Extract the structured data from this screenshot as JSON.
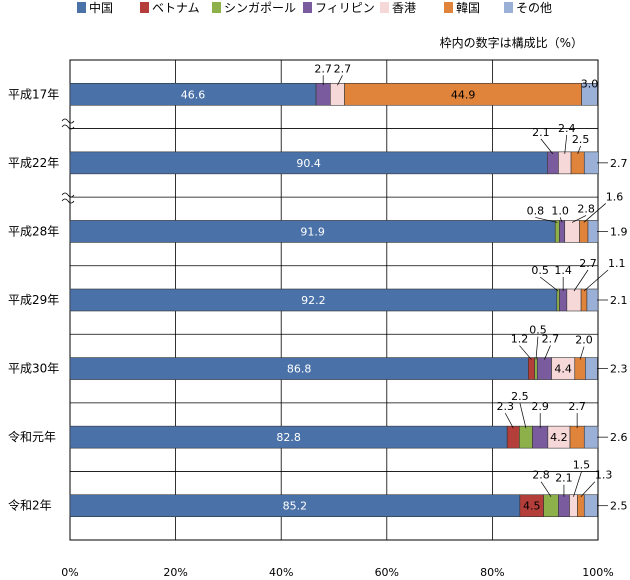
{
  "chart_data": {
    "type": "bar",
    "orientation": "horizontal",
    "stacked": true,
    "note": "枠内の数字は構成比（%）",
    "legend_position": "top",
    "xlim": [
      0,
      100
    ],
    "x_ticks": [
      "0%",
      "20%",
      "40%",
      "60%",
      "80%",
      "100%"
    ],
    "grid": true,
    "categories": [
      "平成17年",
      "平成22年",
      "平成28年",
      "平成29年",
      "平成30年",
      "令和元年",
      "令和2年"
    ],
    "series": [
      {
        "name": "中国",
        "color": "#4a72a8",
        "values": [
          46.6,
          90.4,
          91.9,
          92.2,
          86.8,
          82.8,
          85.2
        ]
      },
      {
        "name": "ベトナム",
        "color": "#b43f3a",
        "values": [
          0,
          0,
          0,
          0,
          1.2,
          2.3,
          4.5
        ]
      },
      {
        "name": "シンガポール",
        "color": "#8eb04a",
        "values": [
          0,
          0,
          0.8,
          0.5,
          0.5,
          2.5,
          2.8
        ]
      },
      {
        "name": "フィリピン",
        "color": "#7a5c9e",
        "values": [
          2.7,
          2.1,
          1.0,
          1.4,
          2.7,
          2.9,
          2.1
        ]
      },
      {
        "name": "香港",
        "color": "#f6d8d8",
        "values": [
          2.7,
          2.4,
          2.8,
          2.7,
          4.4,
          4.2,
          1.5
        ]
      },
      {
        "name": "韓国",
        "color": "#e0843c",
        "values": [
          44.9,
          2.5,
          1.6,
          1.1,
          2.0,
          2.7,
          1.3
        ]
      },
      {
        "name": "その他",
        "color": "#9bb0d6",
        "values": [
          3.0,
          2.7,
          1.9,
          2.1,
          2.3,
          2.6,
          2.5
        ]
      }
    ],
    "labels": [
      [
        "46.6",
        "",
        "",
        "2.7",
        "2.7",
        "44.9",
        "3.0"
      ],
      [
        "90.4",
        "",
        "",
        "2.1",
        "2.4",
        "2.5",
        "2.7"
      ],
      [
        "91.9",
        "",
        "0.8",
        "1.0",
        "2.8",
        "1.6",
        "1.9"
      ],
      [
        "92.2",
        "",
        "0.5",
        "1.4",
        "2.7",
        "1.1",
        "2.1"
      ],
      [
        "86.8",
        "1.2",
        "0.5",
        "2.7",
        "4.4",
        "2.0",
        "2.3"
      ],
      [
        "82.8",
        "2.3",
        "2.5",
        "2.9",
        "4.2",
        "2.7",
        "2.6"
      ],
      [
        "85.2",
        "4.5",
        "2.8",
        "2.1",
        "1.5",
        "1.3",
        "2.5"
      ]
    ]
  }
}
